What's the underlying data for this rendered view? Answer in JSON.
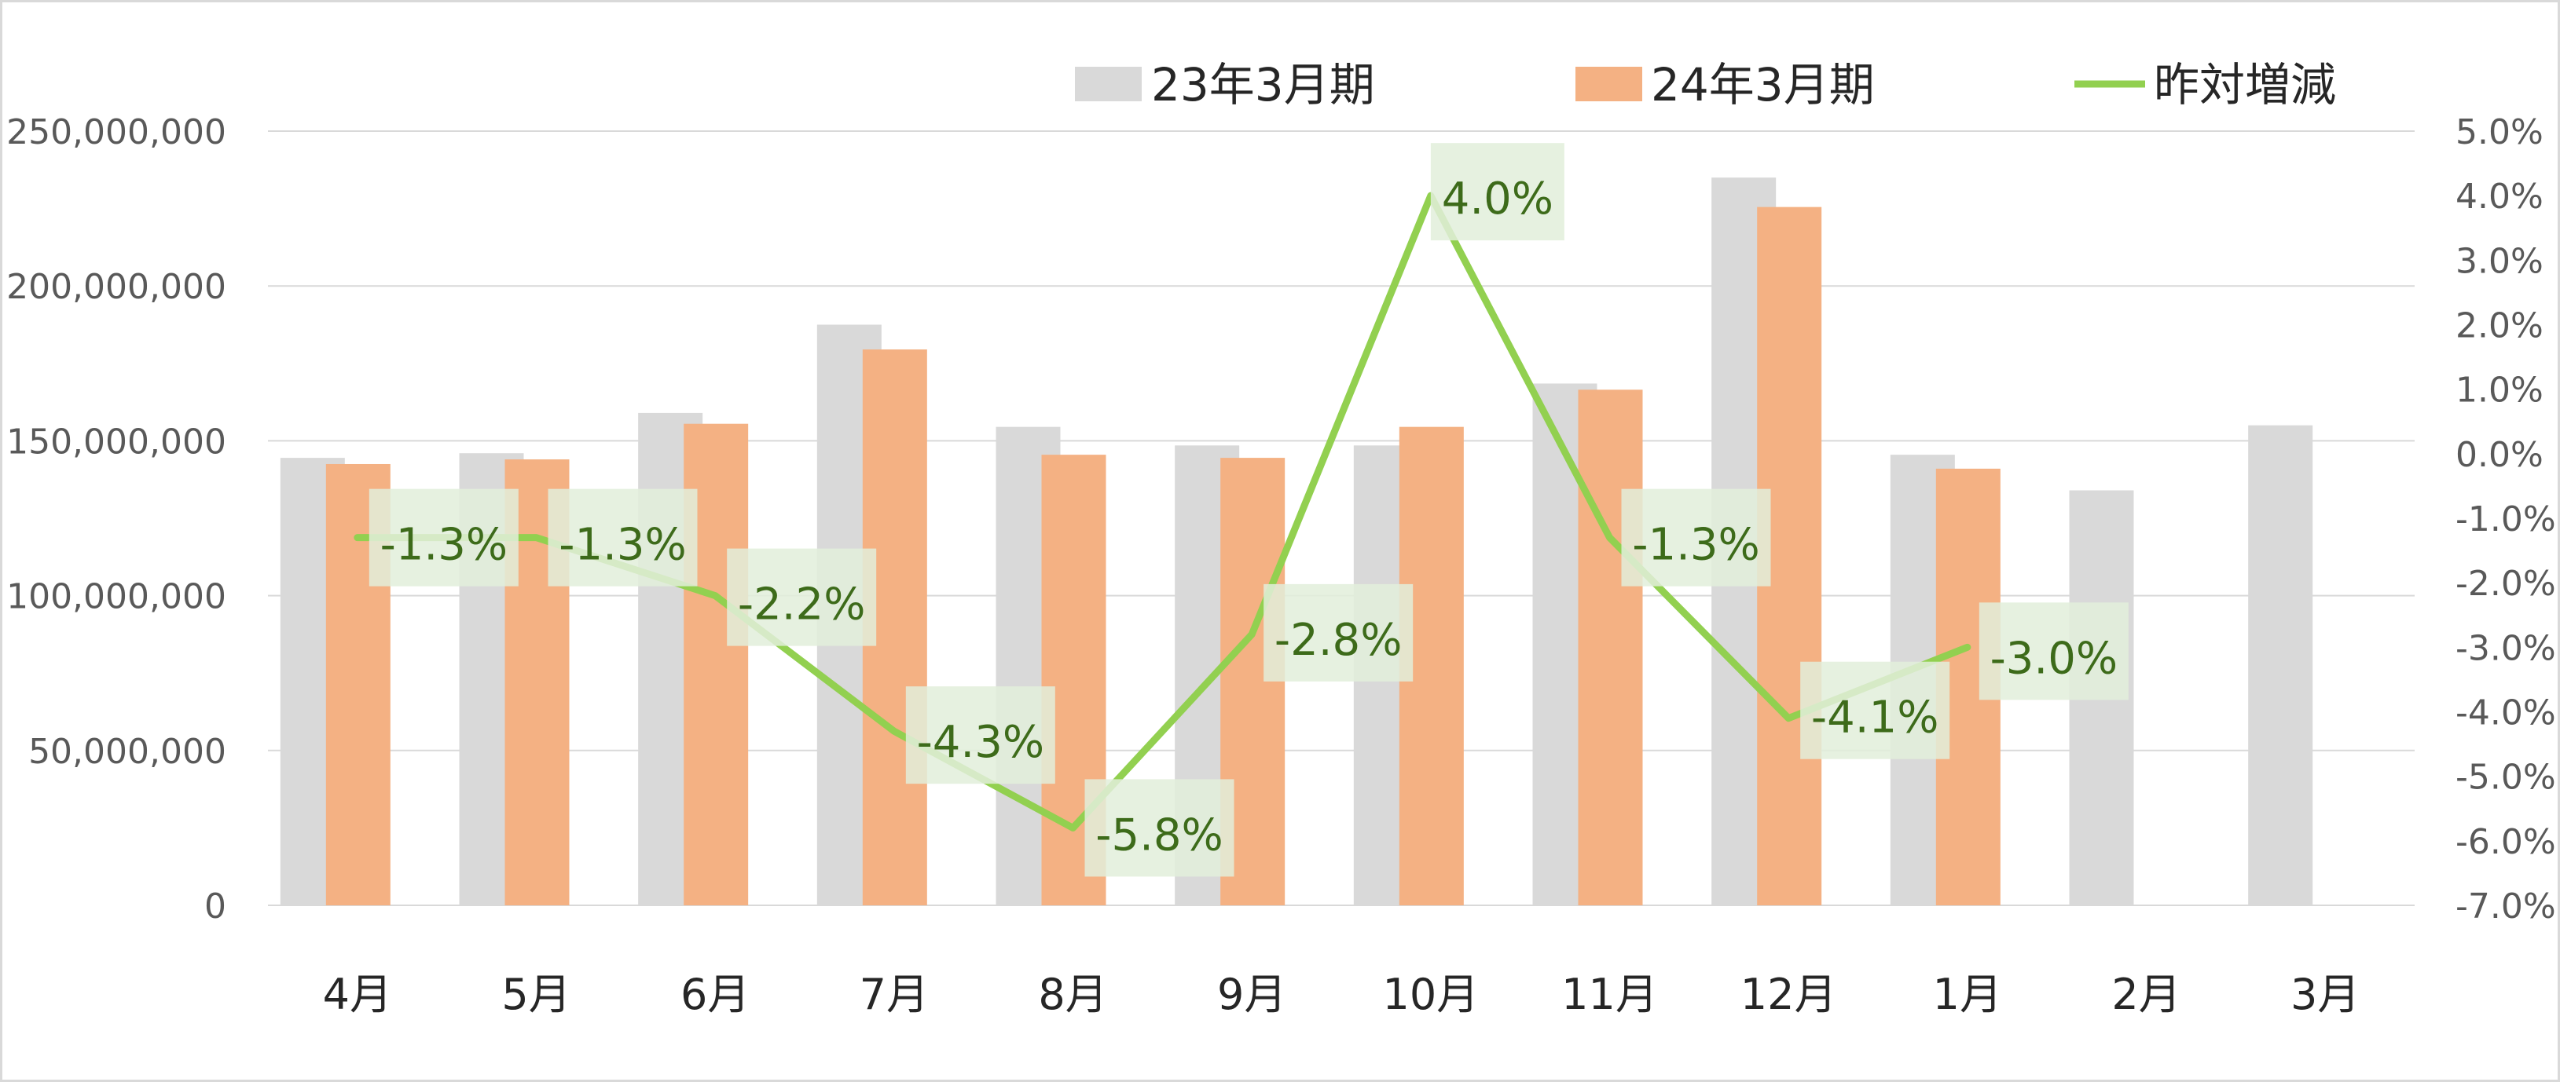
{
  "colors": {
    "prev_year": "#d9d9d9",
    "curr_year": "#f4b183",
    "yoy_line": "#92d050",
    "label_box": "#e2efda",
    "label_text": "#3d6b1a",
    "grid": "#d9d9d9",
    "axis_text": "#595959"
  },
  "chart_data": {
    "type": "bar",
    "categories": [
      "4月",
      "5月",
      "6月",
      "7月",
      "8月",
      "9月",
      "10月",
      "11月",
      "12月",
      "1月",
      "2月",
      "3月"
    ],
    "series": [
      {
        "name": "23年3月期",
        "type": "bar",
        "axis": "left",
        "values": [
          144500000,
          146000000,
          159000000,
          187500000,
          154500000,
          148500000,
          148500000,
          168500000,
          235000000,
          145500000,
          134000000,
          155000000
        ]
      },
      {
        "name": "24年3月期",
        "type": "bar",
        "axis": "left",
        "values": [
          142500000,
          144000000,
          155500000,
          179500000,
          145500000,
          144500000,
          154500000,
          166500000,
          225500000,
          141000000,
          null,
          null
        ]
      },
      {
        "name": "昨対増減",
        "type": "line",
        "axis": "right",
        "values": [
          -1.3,
          -1.3,
          -2.2,
          -4.3,
          -5.8,
          -2.8,
          4.0,
          -1.3,
          -4.1,
          -3.0,
          null,
          null
        ],
        "labels": [
          "-1.3%",
          "-1.3%",
          "-2.2%",
          "-4.3%",
          "-5.8%",
          "-2.8%",
          "4.0%",
          "-1.3%",
          "-4.1%",
          "-3.0%",
          null,
          null
        ]
      }
    ],
    "y_left": {
      "lim": [
        0,
        250000000
      ],
      "ticks": [
        "0",
        "50,000,000",
        "100,000,000",
        "150,000,000",
        "200,000,000",
        "250,000,000"
      ],
      "tick_values": [
        0,
        50000000,
        100000000,
        150000000,
        200000000,
        250000000
      ]
    },
    "y_right": {
      "lim": [
        -7.0,
        5.0
      ],
      "ticks": [
        "-7.0%",
        "-6.0%",
        "-5.0%",
        "-4.0%",
        "-3.0%",
        "-2.0%",
        "-1.0%",
        "0.0%",
        "1.0%",
        "2.0%",
        "3.0%",
        "4.0%",
        "5.0%"
      ],
      "tick_values": [
        -7,
        -6,
        -5,
        -4,
        -3,
        -2,
        -1,
        0,
        1,
        2,
        3,
        4,
        5
      ]
    },
    "legend": {
      "position": "top",
      "items": [
        "23年3月期",
        "24年3月期",
        "昨対増減"
      ]
    },
    "grid": true
  }
}
